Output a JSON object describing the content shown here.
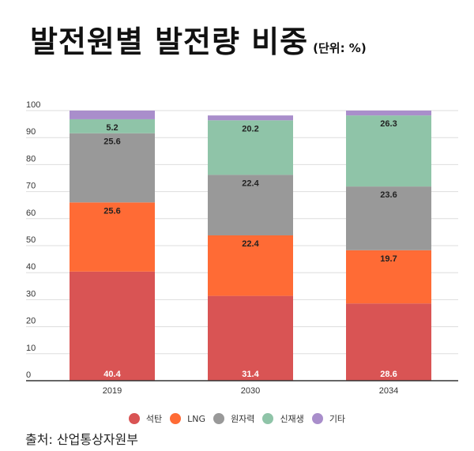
{
  "title": "발전원별 발전량 비중",
  "unit": "(단위: %)",
  "source": "출처: 산업통상자원부",
  "chart_data": {
    "type": "bar",
    "stacked": true,
    "categories": [
      "2019",
      "2030",
      "2034"
    ],
    "ylim": [
      0,
      100
    ],
    "yticks": [
      0,
      10,
      20,
      30,
      40,
      50,
      60,
      70,
      80,
      90,
      100
    ],
    "grid": true,
    "legend": "bottom",
    "series": [
      {
        "name": "석탄",
        "color": "#d95454",
        "values": [
          40.4,
          31.4,
          28.6
        ],
        "labels": [
          "40.4",
          "31.4",
          "28.6"
        ]
      },
      {
        "name": "LNG",
        "color": "#ff6b35",
        "values": [
          25.6,
          22.4,
          19.7
        ],
        "labels": [
          "25.6",
          "22.4",
          "19.7"
        ]
      },
      {
        "name": "원자력",
        "color": "#999999",
        "values": [
          25.6,
          22.4,
          23.6
        ],
        "labels": [
          "25.6",
          "22.4",
          "23.6"
        ]
      },
      {
        "name": "신재생",
        "color": "#8fc4a8",
        "values": [
          5.2,
          20.2,
          26.3
        ],
        "labels": [
          "5.2",
          "20.2",
          "26.3"
        ]
      },
      {
        "name": "기타",
        "color": "#a98ecb",
        "values": [
          3.2,
          1.8,
          1.8
        ],
        "labels": [
          "",
          "",
          ""
        ]
      }
    ]
  }
}
